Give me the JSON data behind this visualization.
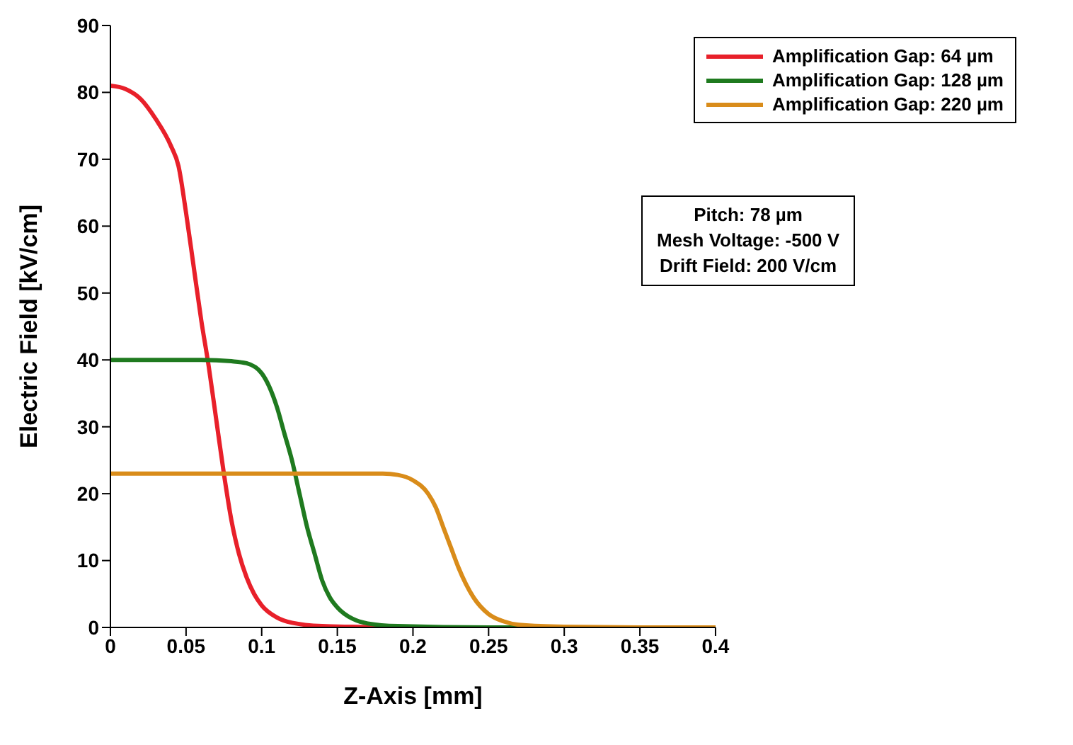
{
  "chart_data": {
    "type": "line",
    "xlabel": "Z-Axis [mm]",
    "ylabel": "Electric Field [kV/cm]",
    "xlim": [
      0,
      0.4
    ],
    "xticks": [
      0,
      0.05,
      0.1,
      0.15,
      0.2,
      0.25,
      0.3,
      0.35,
      0.4
    ],
    "ylim": [
      0,
      90
    ],
    "yticks": [
      0,
      10,
      20,
      30,
      40,
      50,
      60,
      70,
      80,
      90
    ],
    "grid": false,
    "legend": "top right",
    "marker": "none",
    "line_style": "solid",
    "annotations": [
      "Pitch: 78 µm",
      "Mesh Voltage: -500 V",
      "Drift Field: 200 V/cm"
    ],
    "series": [
      {
        "name": "Amplification Gap: 64 µm",
        "color": "#e8202a",
        "x": [
          0,
          0.01,
          0.02,
          0.03,
          0.04,
          0.045,
          0.05,
          0.055,
          0.06,
          0.065,
          0.07,
          0.075,
          0.08,
          0.085,
          0.09,
          0.095,
          0.1,
          0.11,
          0.12,
          0.14,
          0.16,
          0.2
        ],
        "values": [
          81,
          80.5,
          79,
          76,
          72,
          69,
          62,
          54,
          46,
          39,
          31,
          23,
          16,
          11,
          7.5,
          5,
          3.3,
          1.5,
          0.7,
          0.2,
          0.1,
          0
        ]
      },
      {
        "name": "Amplification Gap: 128 µm",
        "color": "#1f7a1f",
        "x": [
          0,
          0.02,
          0.04,
          0.06,
          0.08,
          0.09,
          0.1,
          0.105,
          0.11,
          0.115,
          0.12,
          0.125,
          0.13,
          0.135,
          0.14,
          0.145,
          0.15,
          0.16,
          0.17,
          0.19,
          0.25,
          0.4
        ],
        "values": [
          40,
          40,
          40,
          40,
          39.8,
          39.5,
          38,
          36,
          33,
          29,
          25,
          20,
          15,
          11,
          7,
          4.5,
          3,
          1.3,
          0.6,
          0.2,
          0,
          0
        ]
      },
      {
        "name": "Amplification Gap: 220 µm",
        "color": "#d98c1a",
        "x": [
          0,
          0.05,
          0.1,
          0.15,
          0.18,
          0.19,
          0.2,
          0.21,
          0.215,
          0.22,
          0.225,
          0.23,
          0.235,
          0.24,
          0.25,
          0.26,
          0.27,
          0.3,
          0.35,
          0.4
        ],
        "values": [
          23,
          23,
          23,
          23,
          23,
          22.8,
          22,
          20,
          18,
          15,
          12,
          9,
          6.5,
          4.5,
          2,
          0.9,
          0.4,
          0.1,
          0,
          0
        ]
      }
    ]
  }
}
